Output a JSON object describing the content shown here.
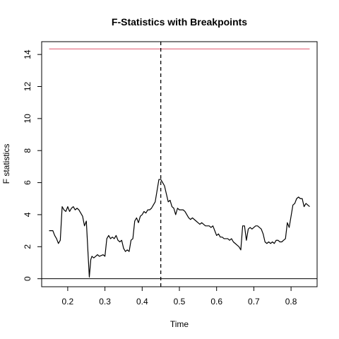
{
  "chart_data": {
    "type": "line",
    "title": "F-Statistics with Breakpoints",
    "xlabel": "Time",
    "ylabel": "F statistics",
    "xlim": [
      0.13,
      0.87
    ],
    "ylim": [
      -0.5,
      14.8
    ],
    "x_ticks": [
      "0.2",
      "0.3",
      "0.4",
      "0.5",
      "0.6",
      "0.7",
      "0.8"
    ],
    "y_ticks": [
      "0",
      "2",
      "4",
      "6",
      "8",
      "10",
      "12",
      "14"
    ],
    "critical_value": 14.35,
    "breakpoint": 0.45,
    "reference_line": 0,
    "series": [
      {
        "name": "F statistics",
        "color": "#000000",
        "points": [
          [
            0.15,
            3.0
          ],
          [
            0.16,
            3.0
          ],
          [
            0.165,
            2.7
          ],
          [
            0.17,
            2.5
          ],
          [
            0.175,
            2.2
          ],
          [
            0.18,
            2.4
          ],
          [
            0.185,
            4.5
          ],
          [
            0.19,
            4.3
          ],
          [
            0.195,
            4.2
          ],
          [
            0.2,
            4.5
          ],
          [
            0.205,
            4.2
          ],
          [
            0.21,
            4.4
          ],
          [
            0.215,
            4.5
          ],
          [
            0.22,
            4.3
          ],
          [
            0.225,
            4.4
          ],
          [
            0.23,
            4.3
          ],
          [
            0.235,
            4.1
          ],
          [
            0.24,
            3.9
          ],
          [
            0.245,
            3.3
          ],
          [
            0.25,
            3.6
          ],
          [
            0.255,
            1.4
          ],
          [
            0.258,
            0.1
          ],
          [
            0.262,
            1.2
          ],
          [
            0.265,
            1.4
          ],
          [
            0.27,
            1.3
          ],
          [
            0.275,
            1.4
          ],
          [
            0.28,
            1.5
          ],
          [
            0.285,
            1.4
          ],
          [
            0.29,
            1.45
          ],
          [
            0.295,
            1.5
          ],
          [
            0.3,
            1.4
          ],
          [
            0.305,
            2.5
          ],
          [
            0.31,
            2.7
          ],
          [
            0.315,
            2.5
          ],
          [
            0.32,
            2.6
          ],
          [
            0.325,
            2.5
          ],
          [
            0.33,
            2.7
          ],
          [
            0.335,
            2.4
          ],
          [
            0.34,
            2.3
          ],
          [
            0.345,
            2.4
          ],
          [
            0.35,
            1.9
          ],
          [
            0.355,
            1.7
          ],
          [
            0.36,
            1.8
          ],
          [
            0.365,
            1.7
          ],
          [
            0.37,
            2.4
          ],
          [
            0.375,
            2.5
          ],
          [
            0.38,
            3.6
          ],
          [
            0.385,
            3.8
          ],
          [
            0.39,
            3.5
          ],
          [
            0.395,
            3.9
          ],
          [
            0.4,
            4.0
          ],
          [
            0.405,
            4.2
          ],
          [
            0.41,
            4.1
          ],
          [
            0.415,
            4.3
          ],
          [
            0.42,
            4.3
          ],
          [
            0.425,
            4.4
          ],
          [
            0.43,
            4.6
          ],
          [
            0.435,
            4.8
          ],
          [
            0.44,
            5.5
          ],
          [
            0.445,
            6.2
          ],
          [
            0.45,
            6.2
          ],
          [
            0.455,
            6.0
          ],
          [
            0.46,
            5.8
          ],
          [
            0.465,
            5.3
          ],
          [
            0.47,
            4.8
          ],
          [
            0.475,
            4.9
          ],
          [
            0.48,
            4.5
          ],
          [
            0.485,
            4.4
          ],
          [
            0.49,
            4.0
          ],
          [
            0.495,
            4.4
          ],
          [
            0.5,
            4.3
          ],
          [
            0.505,
            4.3
          ],
          [
            0.51,
            4.3
          ],
          [
            0.515,
            4.2
          ],
          [
            0.52,
            4.0
          ],
          [
            0.525,
            3.8
          ],
          [
            0.53,
            3.7
          ],
          [
            0.535,
            3.8
          ],
          [
            0.54,
            3.7
          ],
          [
            0.545,
            3.6
          ],
          [
            0.55,
            3.5
          ],
          [
            0.555,
            3.4
          ],
          [
            0.56,
            3.5
          ],
          [
            0.565,
            3.4
          ],
          [
            0.57,
            3.3
          ],
          [
            0.575,
            3.3
          ],
          [
            0.58,
            3.3
          ],
          [
            0.585,
            3.2
          ],
          [
            0.59,
            3.3
          ],
          [
            0.595,
            3.0
          ],
          [
            0.6,
            2.7
          ],
          [
            0.605,
            2.8
          ],
          [
            0.61,
            2.6
          ],
          [
            0.615,
            2.6
          ],
          [
            0.62,
            2.5
          ],
          [
            0.625,
            2.5
          ],
          [
            0.63,
            2.5
          ],
          [
            0.635,
            2.4
          ],
          [
            0.64,
            2.5
          ],
          [
            0.645,
            2.3
          ],
          [
            0.65,
            2.2
          ],
          [
            0.655,
            2.1
          ],
          [
            0.66,
            2.0
          ],
          [
            0.665,
            1.8
          ],
          [
            0.67,
            3.3
          ],
          [
            0.675,
            3.3
          ],
          [
            0.68,
            2.4
          ],
          [
            0.685,
            3.1
          ],
          [
            0.69,
            3.2
          ],
          [
            0.695,
            3.1
          ],
          [
            0.7,
            3.2
          ],
          [
            0.705,
            3.3
          ],
          [
            0.71,
            3.3
          ],
          [
            0.715,
            3.2
          ],
          [
            0.72,
            3.1
          ],
          [
            0.725,
            2.8
          ],
          [
            0.73,
            2.3
          ],
          [
            0.735,
            2.2
          ],
          [
            0.74,
            2.3
          ],
          [
            0.745,
            2.2
          ],
          [
            0.75,
            2.3
          ],
          [
            0.755,
            2.2
          ],
          [
            0.76,
            2.4
          ],
          [
            0.765,
            2.4
          ],
          [
            0.77,
            2.3
          ],
          [
            0.775,
            2.3
          ],
          [
            0.78,
            2.4
          ],
          [
            0.785,
            2.5
          ],
          [
            0.79,
            3.5
          ],
          [
            0.795,
            3.2
          ],
          [
            0.8,
            3.9
          ],
          [
            0.805,
            4.6
          ],
          [
            0.81,
            4.7
          ],
          [
            0.815,
            5.0
          ],
          [
            0.82,
            5.1
          ],
          [
            0.825,
            5.0
          ],
          [
            0.83,
            5.0
          ],
          [
            0.835,
            4.5
          ],
          [
            0.84,
            4.7
          ],
          [
            0.845,
            4.6
          ],
          [
            0.85,
            4.5
          ]
        ]
      }
    ],
    "colors": {
      "series": "#000000",
      "critical_line": "#DF536B",
      "breakpoint_line": "#000000",
      "zero_line": "#000000"
    }
  }
}
